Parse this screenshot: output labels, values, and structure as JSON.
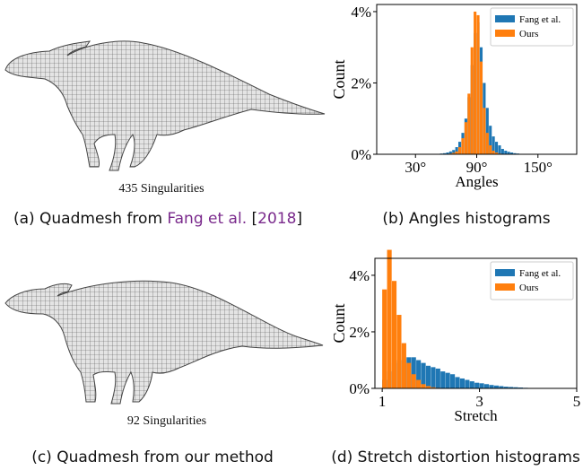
{
  "panels": [
    {
      "singularities": "435 Singularities",
      "caption": {
        "before": "(a) Quadmesh from ",
        "link": "Fang et al.",
        "mid": " [",
        "year": "2018",
        "after": "]"
      }
    },
    {
      "caption": "(b) Angles histograms"
    },
    {
      "singularities": "92 Singularities",
      "caption": "(c) Quadmesh from our method"
    },
    {
      "caption": "(d) Stretch distortion histograms"
    }
  ],
  "chart_data": [
    {
      "type": "histogram",
      "xlabel": "Angles",
      "ylabel": "Count",
      "legend": "upper right",
      "xlim": [
        -8,
        188
      ],
      "ylim": [
        0,
        4.2
      ],
      "xticks": [
        {
          "value": 30,
          "label": "30°"
        },
        {
          "value": 90,
          "label": "90°"
        },
        {
          "value": 150,
          "label": "150°"
        }
      ],
      "yticks": [
        {
          "value": 0,
          "label": "0%"
        },
        {
          "value": 2,
          "label": "2%"
        },
        {
          "value": 4,
          "label": "4%"
        }
      ],
      "bins": [
        54,
        57,
        60,
        63,
        66,
        69,
        72,
        75,
        78,
        81,
        84,
        87,
        90,
        93,
        96,
        99,
        102,
        105,
        108,
        111,
        114,
        117,
        120,
        123,
        126,
        129,
        132
      ],
      "series": [
        {
          "name": "Fang et al.",
          "color": "#1f77b4",
          "values": [
            0.02,
            0.03,
            0.05,
            0.08,
            0.12,
            0.2,
            0.35,
            0.6,
            1.0,
            1.6,
            2.5,
            3.4,
            3.7,
            3.0,
            2.0,
            1.3,
            0.8,
            0.5,
            0.35,
            0.25,
            0.15,
            0.1,
            0.07,
            0.05,
            0.03,
            0.02
          ]
        },
        {
          "name": "Ours",
          "color": "#ff7f0e",
          "values": [
            0,
            0,
            0.01,
            0.02,
            0.04,
            0.08,
            0.2,
            0.45,
            0.9,
            1.7,
            3.0,
            4.0,
            3.9,
            2.6,
            1.3,
            0.6,
            0.25,
            0.1,
            0.05,
            0.02,
            0.01,
            0,
            0,
            0,
            0,
            0
          ]
        }
      ]
    },
    {
      "type": "histogram",
      "xlabel": "Stretch",
      "ylabel": "Count",
      "legend": "upper right",
      "xlim": [
        0.85,
        5
      ],
      "ylim": [
        0,
        4.6
      ],
      "xticks": [
        1,
        3,
        5
      ],
      "yticks": [
        {
          "value": 0,
          "label": "0%"
        },
        {
          "value": 2,
          "label": "2%"
        },
        {
          "value": 4,
          "label": "4%"
        }
      ],
      "bins": [
        1,
        1.1,
        1.2,
        1.3,
        1.4,
        1.5,
        1.6,
        1.7,
        1.8,
        1.9,
        2,
        2.1,
        2.2,
        2.3,
        2.4,
        2.5,
        2.6,
        2.7,
        2.8,
        2.9,
        3,
        3.1,
        3.2,
        3.3,
        3.4,
        3.5,
        3.6,
        3.7,
        3.8,
        3.9,
        4
      ],
      "series": [
        {
          "name": "Fang et al.",
          "color": "#1f77b4",
          "values": [
            0.3,
            0.6,
            0.9,
            1.0,
            1.0,
            1.1,
            1.1,
            1.0,
            0.9,
            0.8,
            0.75,
            0.7,
            0.6,
            0.55,
            0.5,
            0.4,
            0.35,
            0.3,
            0.25,
            0.2,
            0.18,
            0.15,
            0.12,
            0.1,
            0.08,
            0.06,
            0.05,
            0.04,
            0.03,
            0.02
          ]
        },
        {
          "name": "Ours",
          "color": "#ff7f0e",
          "values": [
            3.5,
            4.9,
            3.8,
            2.6,
            1.6,
            0.9,
            0.5,
            0.3,
            0.15,
            0.08,
            0.04,
            0.02,
            0,
            0,
            0,
            0,
            0,
            0,
            0,
            0,
            0,
            0,
            0,
            0,
            0,
            0,
            0,
            0,
            0,
            0
          ]
        }
      ]
    }
  ]
}
